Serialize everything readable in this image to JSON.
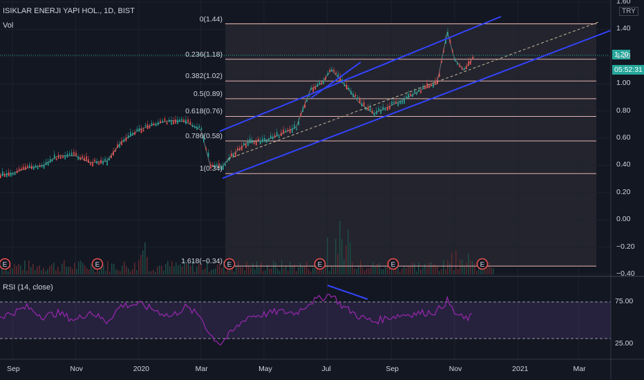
{
  "header": {
    "symbol": "ISIKLAR ENERJI YAPI HOL., 1D, BIST",
    "vol_label": "Vol",
    "currency": "TRY"
  },
  "price_axis": {
    "ticks": [
      "1.60",
      "1.40",
      "1.20",
      "1.00",
      "0.80",
      "0.60",
      "0.40",
      "0.20",
      "0.00",
      "−0.20",
      "−0.40"
    ],
    "last_price": "1.20",
    "countdown": "05:52:31",
    "accent": "#26a69a"
  },
  "rsi": {
    "title": "RSI (14, close)",
    "upper": "75.00",
    "lower": "25.00",
    "color": "#9c27b0"
  },
  "time_axis": {
    "ticks": [
      "Sep",
      "Nov",
      "2020",
      "Mar",
      "May",
      "Jul",
      "Sep",
      "Nov",
      "2021",
      "Mar"
    ]
  },
  "fib_levels": [
    {
      "label": "0(1.44)",
      "value": 1.44
    },
    {
      "label": "0.236(1.18)",
      "value": 1.18
    },
    {
      "label": "0.382(1.02)",
      "value": 1.02
    },
    {
      "label": "0.5(0.89)",
      "value": 0.89
    },
    {
      "label": "0.618(0.76)",
      "value": 0.76
    },
    {
      "label": "0.786(0.58)",
      "value": 0.58
    },
    {
      "label": "1(0.34)",
      "value": 0.34
    },
    {
      "label": "1.618(−0.34)",
      "value": -0.34
    }
  ],
  "earnings_label": "E",
  "chart_data": {
    "type": "line",
    "title": "ISIKLAR ENERJI YAPI HOL., 1D, BIST",
    "xlabel": "",
    "ylabel": "",
    "ylim": [
      -0.4,
      1.6
    ],
    "series": [
      {
        "name": "",
        "x": [
          "2019-08-20",
          "2019-09-01",
          "2019-09-15",
          "2019-10-01",
          "2019-10-15",
          "2019-11-01",
          "2019-11-15",
          "2019-12-01",
          "2019-12-15",
          "2020-01-01",
          "2020-01-15",
          "2020-02-01",
          "2020-02-15",
          "2020-03-01",
          "2020-03-10",
          "2020-03-20",
          "2020-04-01",
          "2020-04-15",
          "2020-05-01",
          "2020-05-15",
          "2020-06-01",
          "2020-06-15",
          "2020-06-25",
          "2020-07-05",
          "2020-07-15",
          "2020-08-01",
          "2020-08-15",
          "2020-09-01",
          "2020-09-15",
          "2020-10-01",
          "2020-10-15",
          "2020-10-25",
          "2020-11-01",
          "2020-11-10",
          "2020-11-20"
        ],
        "values": [
          0.33,
          0.34,
          0.38,
          0.4,
          0.47,
          0.47,
          0.42,
          0.43,
          0.57,
          0.66,
          0.7,
          0.73,
          0.72,
          0.66,
          0.4,
          0.38,
          0.48,
          0.57,
          0.58,
          0.62,
          0.68,
          0.96,
          1.0,
          1.1,
          1.02,
          0.86,
          0.78,
          0.84,
          0.89,
          0.96,
          1.0,
          1.38,
          1.18,
          1.1,
          1.2
        ]
      },
      {
        "name": "RSI (14, close)",
        "x": [
          "2019-08-20",
          "2019-09-01",
          "2019-09-15",
          "2019-10-01",
          "2019-10-15",
          "2019-11-01",
          "2019-11-15",
          "2019-12-01",
          "2019-12-15",
          "2020-01-01",
          "2020-01-15",
          "2020-02-01",
          "2020-02-15",
          "2020-03-01",
          "2020-03-10",
          "2020-03-20",
          "2020-04-01",
          "2020-04-15",
          "2020-05-01",
          "2020-05-15",
          "2020-06-01",
          "2020-06-15",
          "2020-06-25",
          "2020-07-05",
          "2020-07-15",
          "2020-08-01",
          "2020-08-15",
          "2020-09-01",
          "2020-09-15",
          "2020-10-01",
          "2020-10-15",
          "2020-10-25",
          "2020-11-01",
          "2020-11-10",
          "2020-11-20"
        ],
        "values": [
          55,
          60,
          68,
          55,
          60,
          50,
          62,
          48,
          70,
          72,
          65,
          55,
          68,
          55,
          30,
          18,
          35,
          55,
          58,
          62,
          60,
          75,
          80,
          86,
          70,
          55,
          48,
          55,
          58,
          60,
          62,
          77,
          60,
          52,
          55
        ]
      }
    ],
    "x_ticks": [
      "Sep",
      "Nov",
      "2020",
      "Mar",
      "May",
      "Jul",
      "Sep",
      "Nov",
      "2021",
      "Mar"
    ],
    "y_ticks": [
      1.6,
      1.4,
      1.2,
      1.0,
      0.8,
      0.6,
      0.4,
      0.2,
      0.0,
      -0.2,
      -0.4
    ],
    "rsi_levels": [
      75,
      25
    ],
    "grid": true
  }
}
